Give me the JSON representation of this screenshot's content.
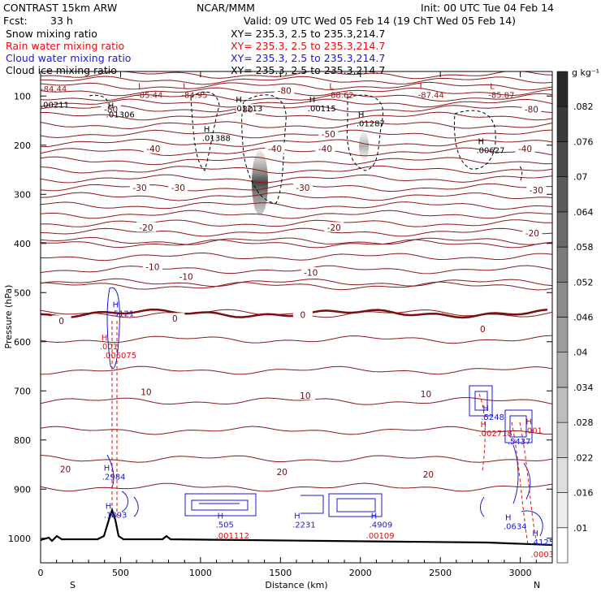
{
  "header": {
    "model": "CONTRAST 15km ARW",
    "center": "NCAR/MMM",
    "init": "Init: 00 UTC Tue 04 Feb 14",
    "fcst_label": "Fcst:",
    "fcst_value": "33 h",
    "valid": "Valid: 09 UTC Wed 05 Feb 14 (19 ChT Wed 05 Feb 14)"
  },
  "fields": [
    {
      "name": "Snow mixing ratio",
      "color": "#000000",
      "xy": "XY= 235.3,  2.5 to 235.3,214.7"
    },
    {
      "name": "Rain water mixing ratio",
      "color": "#dd1111",
      "xy": "XY= 235.3,  2.5 to 235.3,214.7"
    },
    {
      "name": "Cloud water mixing ratio",
      "color": "#1a1acc",
      "xy": "XY= 235.3,  2.5 to 235.3,214.7"
    },
    {
      "name": "Cloud ice mixing ratio",
      "color": "#000000",
      "xy": "XY= 235.3,  2.5 to 235.3,214.7"
    }
  ],
  "chart_data": {
    "type": "cross-section",
    "xlabel": "Distance (km)",
    "ylabel": "Pressure (hPa)",
    "xlim": [
      0,
      3200
    ],
    "ylim": [
      1050,
      50
    ],
    "xticks": [
      0,
      500,
      1000,
      1500,
      2000,
      2500,
      3000
    ],
    "yticks": [
      100,
      200,
      300,
      400,
      500,
      600,
      700,
      800,
      900,
      1000
    ],
    "x_ends": {
      "left": "S",
      "right": "N"
    },
    "colorbar": {
      "unit": "g kg⁻¹",
      "labels": [
        ".01",
        ".016",
        ".022",
        ".028",
        ".034",
        ".04",
        ".046",
        ".052",
        ".058",
        ".064",
        ".07",
        ".076",
        ".082"
      ]
    },
    "temperature_contours": [
      {
        "label": "-80",
        "x": 1525,
        "p": 90
      },
      {
        "label": "-80",
        "x": 3070,
        "p": 128
      },
      {
        "label": "-80",
        "x": 1285,
        "p": 128
      },
      {
        "label": "-80",
        "x": 440,
        "p": 128
      },
      {
        "label": "-50",
        "x": 1800,
        "p": 178
      },
      {
        "label": "-40",
        "x": 1780,
        "p": 208
      },
      {
        "label": "-40",
        "x": 1465,
        "p": 208
      },
      {
        "label": "-40",
        "x": 705,
        "p": 208
      },
      {
        "label": "-40",
        "x": 3030,
        "p": 208
      },
      {
        "label": "-30",
        "x": 1640,
        "p": 287
      },
      {
        "label": "-30",
        "x": 620,
        "p": 287
      },
      {
        "label": "-30",
        "x": 860,
        "p": 287
      },
      {
        "label": "-30",
        "x": 3100,
        "p": 292
      },
      {
        "label": "-20",
        "x": 660,
        "p": 368
      },
      {
        "label": "-20",
        "x": 1835,
        "p": 368
      },
      {
        "label": "-20",
        "x": 3075,
        "p": 380
      },
      {
        "label": "-10",
        "x": 700,
        "p": 448
      },
      {
        "label": "-10",
        "x": 910,
        "p": 468
      },
      {
        "label": "-10",
        "x": 1690,
        "p": 460
      },
      {
        "label": "0",
        "x": 130,
        "p": 558
      },
      {
        "label": "0",
        "x": 840,
        "p": 553
      },
      {
        "label": "0",
        "x": 1640,
        "p": 546
      },
      {
        "label": "0",
        "x": 2765,
        "p": 575
      },
      {
        "label": "10",
        "x": 660,
        "p": 703
      },
      {
        "label": "10",
        "x": 1655,
        "p": 710
      },
      {
        "label": "10",
        "x": 2410,
        "p": 707
      },
      {
        "label": "20",
        "x": 155,
        "p": 860
      },
      {
        "label": "20",
        "x": 1510,
        "p": 866
      },
      {
        "label": "20",
        "x": 2425,
        "p": 871
      }
    ],
    "extrema": [
      {
        "mark": "L",
        "value": "-85.44",
        "x": 600,
        "p": 100,
        "color": "#8b1a1a"
      },
      {
        "mark": "L",
        "value": "-84.95",
        "x": 880,
        "p": 100,
        "color": "#8b1a1a"
      },
      {
        "mark": "L",
        "value": "-88.62",
        "x": 1795,
        "p": 100,
        "color": "#8b1a1a"
      },
      {
        "mark": "L",
        "value": "-87.44",
        "x": 2360,
        "p": 100,
        "color": "#8b1a1a"
      },
      {
        "mark": "L",
        "value": "-85.87",
        "x": 2800,
        "p": 100,
        "color": "#8b1a1a"
      },
      {
        "mark": "",
        "value": "-84.44",
        "x": 0,
        "p": 88,
        "color": "#8b1a1a"
      },
      {
        "mark": "H",
        "value": ".01306",
        "x": 410,
        "p": 140,
        "color": "#000000"
      },
      {
        "mark": "H",
        "value": ".01213",
        "x": 1210,
        "p": 128,
        "color": "#000000"
      },
      {
        "mark": "H",
        "value": ".00115",
        "x": 1670,
        "p": 128,
        "color": "#000000"
      },
      {
        "mark": "H",
        "value": ".01287",
        "x": 1975,
        "p": 158,
        "color": "#000000"
      },
      {
        "mark": "H",
        "value": ".01388",
        "x": 1010,
        "p": 188,
        "color": "#000000"
      },
      {
        "mark": "H",
        "value": ".00627",
        "x": 2725,
        "p": 213,
        "color": "#000000"
      },
      {
        "mark": "",
        "value": ".00211",
        "x": 0,
        "p": 120,
        "color": "#000000"
      },
      {
        "mark": "H",
        "value": ".5121",
        "x": 440,
        "p": 545,
        "color": "#1a1acc"
      },
      {
        "mark": "H",
        "value": ".001",
        "x": 370,
        "p": 612,
        "color": "#dd1111"
      },
      {
        "mark": "",
        "value": ".006075",
        "x": 390,
        "p": 630,
        "color": "#dd1111"
      },
      {
        "mark": "H",
        "value": ".2984",
        "x": 385,
        "p": 877,
        "color": "#1a1acc"
      },
      {
        "mark": "H",
        "value": ".1893",
        "x": 395,
        "p": 955,
        "color": "#1a1acc"
      },
      {
        "mark": "H",
        "value": ".505",
        "x": 1095,
        "p": 975,
        "color": "#1a1acc"
      },
      {
        "mark": "",
        "value": ".001112",
        "x": 1095,
        "p": 997,
        "color": "#dd1111"
      },
      {
        "mark": "H",
        "value": ".2231",
        "x": 1575,
        "p": 975,
        "color": "#1a1acc"
      },
      {
        "mark": "H",
        "value": ".4909",
        "x": 2055,
        "p": 975,
        "color": "#1a1acc"
      },
      {
        "mark": "",
        "value": ".00109",
        "x": 2035,
        "p": 997,
        "color": "#dd1111"
      },
      {
        "mark": "H",
        "value": ".5248",
        "x": 2755,
        "p": 756,
        "color": "#1a1acc"
      },
      {
        "mark": "H",
        "value": ".002718",
        "x": 2740,
        "p": 789,
        "color": "#dd1111"
      },
      {
        "mark": "H",
        "value": ".001",
        "x": 3025,
        "p": 783,
        "color": "#dd1111"
      },
      {
        "mark": "",
        "value": ".5437",
        "x": 2920,
        "p": 805,
        "color": "#1a1acc"
      },
      {
        "mark": "H",
        "value": ".0634",
        "x": 2895,
        "p": 978,
        "color": "#1a1acc"
      },
      {
        "mark": "H",
        "value": ".4125",
        "x": 3065,
        "p": 1010,
        "color": "#1a1acc"
      },
      {
        "mark": "",
        "value": ".0003",
        "x": 3065,
        "p": 1035,
        "color": "#dd1111"
      }
    ]
  }
}
